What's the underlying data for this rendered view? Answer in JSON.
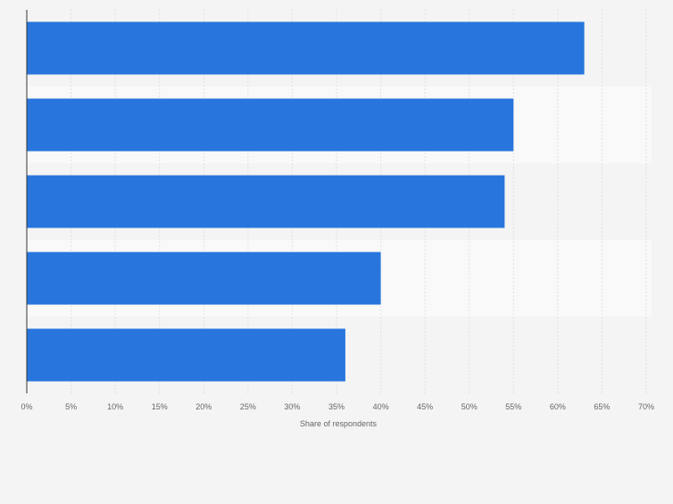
{
  "chart_data": {
    "type": "bar",
    "orientation": "horizontal",
    "categories": [
      "",
      "",
      "",
      "",
      ""
    ],
    "values": [
      63,
      55,
      54,
      40,
      36
    ],
    "xlabel": "Share of respondents",
    "ylabel": "",
    "xlim": [
      0,
      70
    ],
    "xticks": [
      0,
      5,
      10,
      15,
      20,
      25,
      30,
      35,
      40,
      45,
      50,
      55,
      60,
      65,
      70
    ],
    "tick_suffix": "%",
    "grid": true,
    "bar_color": "#2876dd",
    "band_colors": [
      "#f4f4f4",
      "#f9f9f9"
    ],
    "gridline_color": "#e0e0e0",
    "axis_color": "#333333",
    "tick_label_color": "#666666"
  }
}
